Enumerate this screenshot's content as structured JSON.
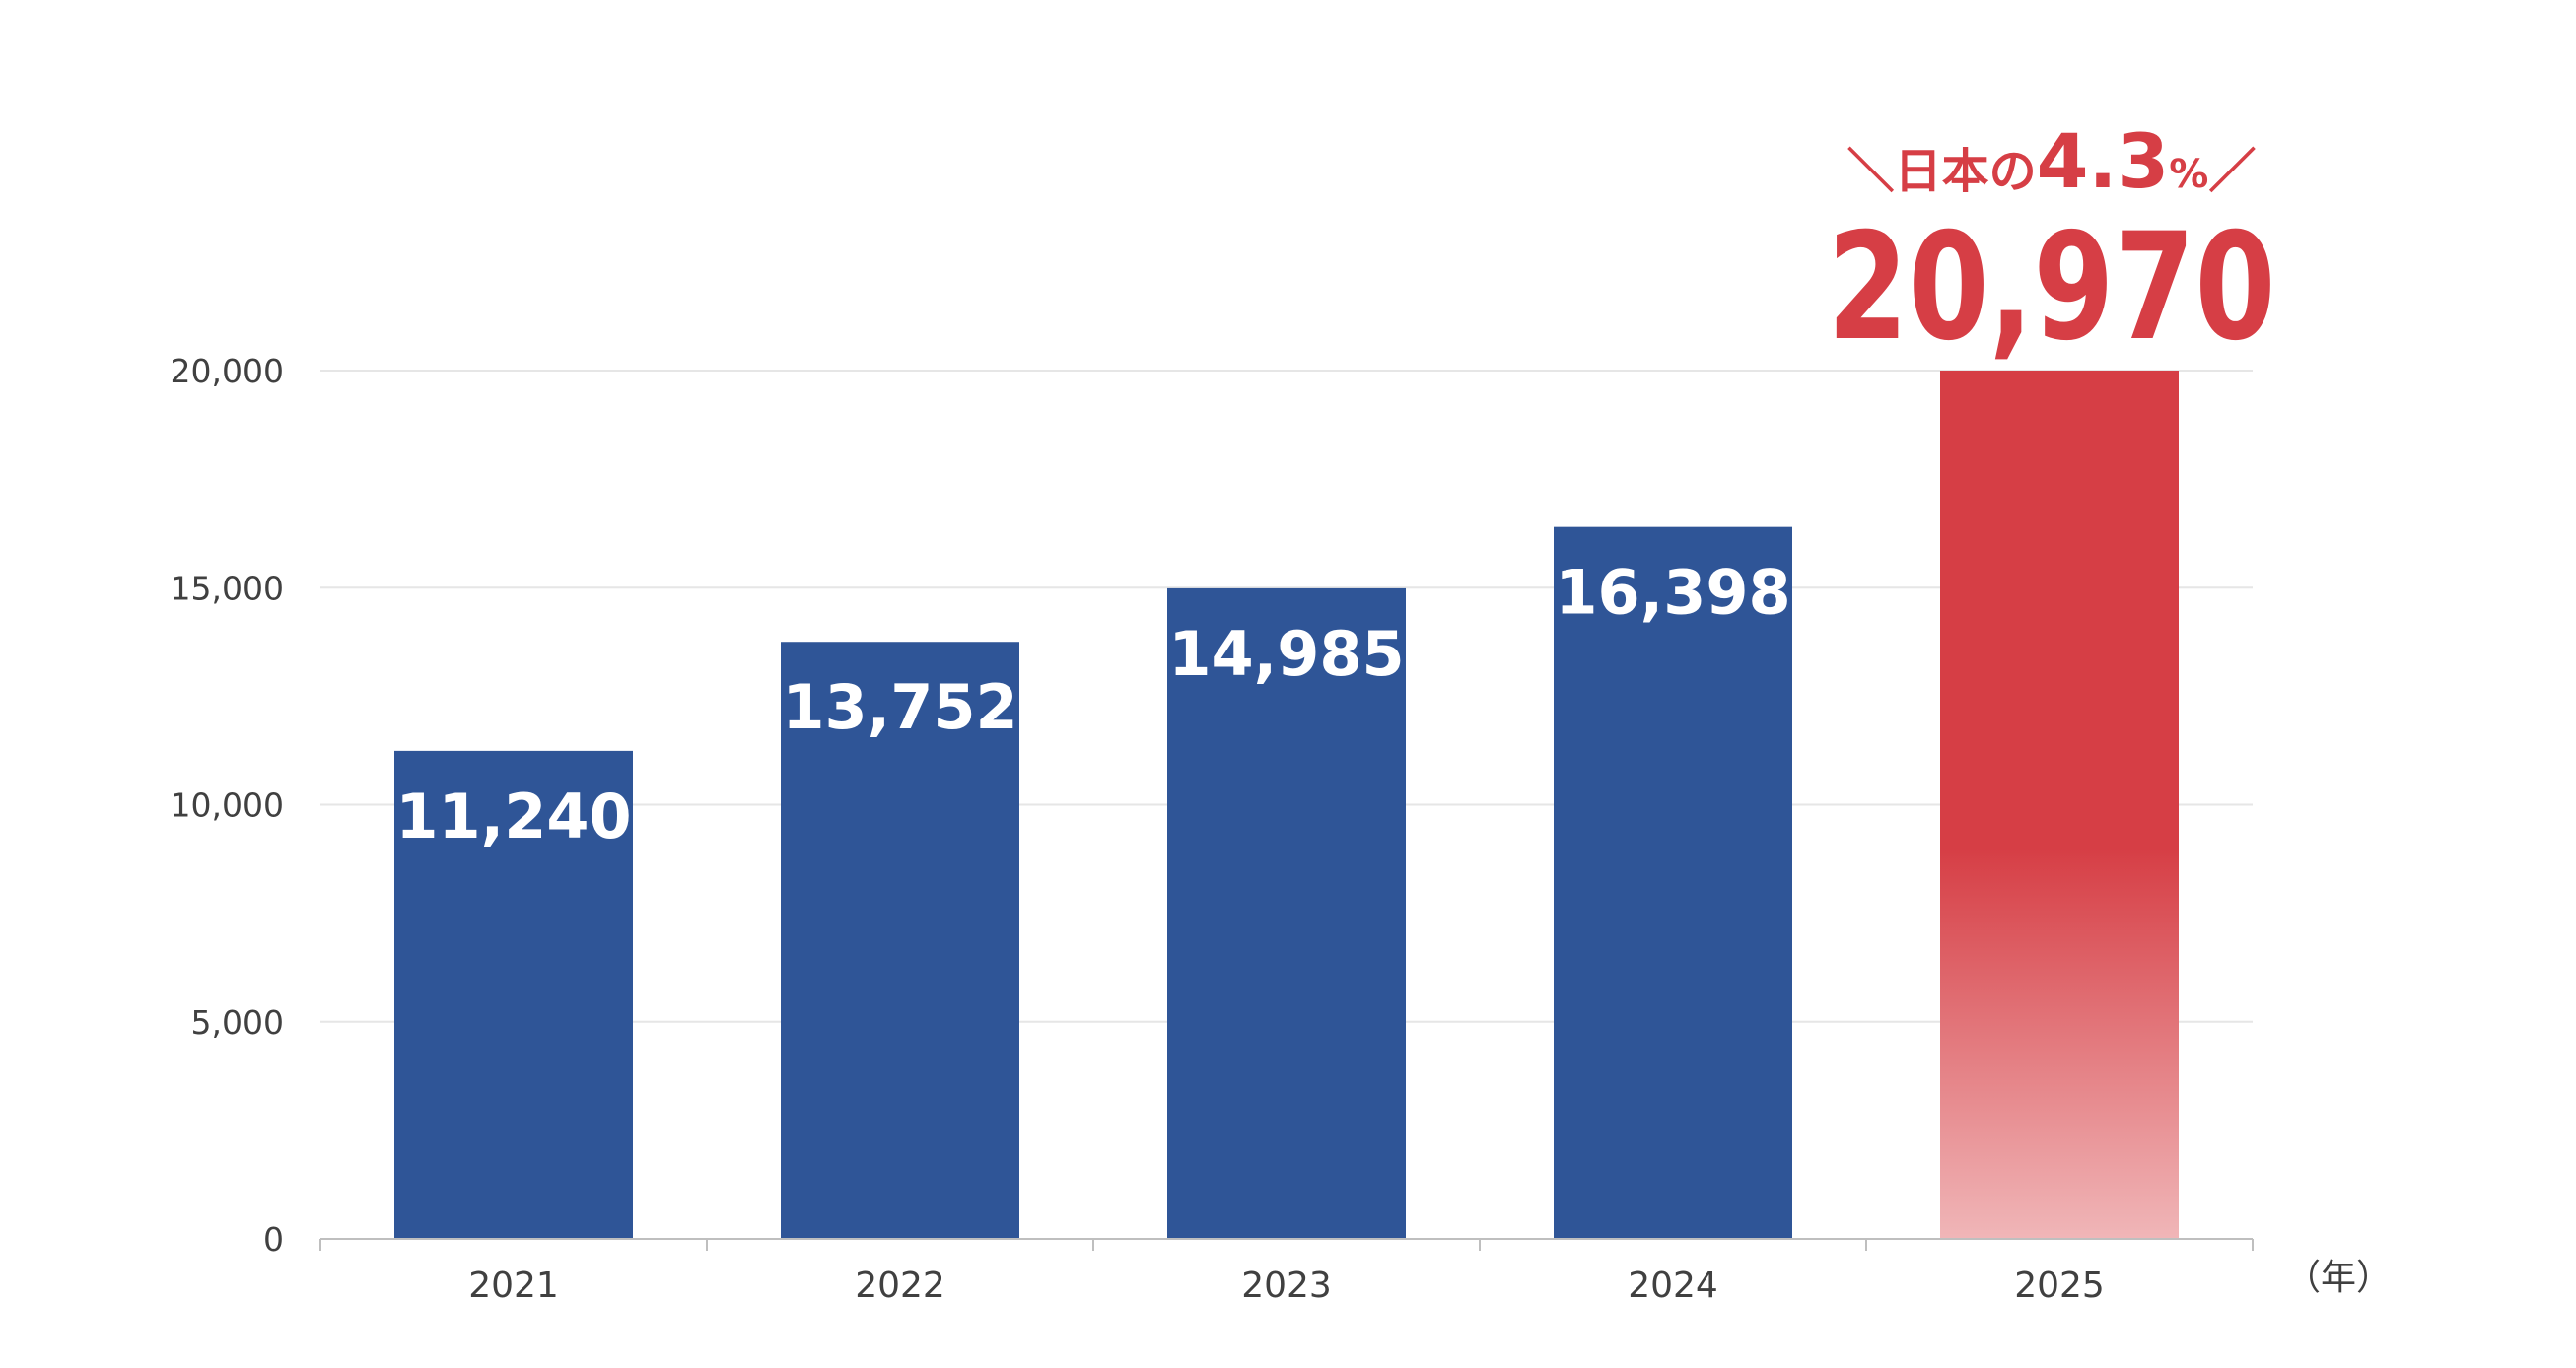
{
  "chart_data": {
    "type": "bar",
    "categories": [
      "2021",
      "2022",
      "2023",
      "2024",
      "2025"
    ],
    "values": [
      11240,
      13752,
      14985,
      16398,
      20970
    ],
    "data_labels": [
      "11,240",
      "13,752",
      "14,985",
      "16,398",
      "20,970"
    ],
    "ylim": [
      0,
      20000
    ],
    "yticks": [
      0,
      5000,
      10000,
      15000,
      20000
    ],
    "ytick_labels": [
      "0",
      "5,000",
      "10,000",
      "15,000",
      "20,000"
    ],
    "xlabel": "（年）",
    "ylabel": "",
    "grid": true,
    "highlight": {
      "category": "2025",
      "value_label": "20,970",
      "annotation_prefix": "＼日本の",
      "annotation_value": "4.3",
      "annotation_unit": "%",
      "annotation_suffix": "／"
    },
    "colors": {
      "bar": "#2f5597",
      "highlight": "#d63e45",
      "highlight_fade": "#f0b6b8",
      "grid": "#e6e6e6",
      "axis": "#bfbfbf"
    }
  }
}
